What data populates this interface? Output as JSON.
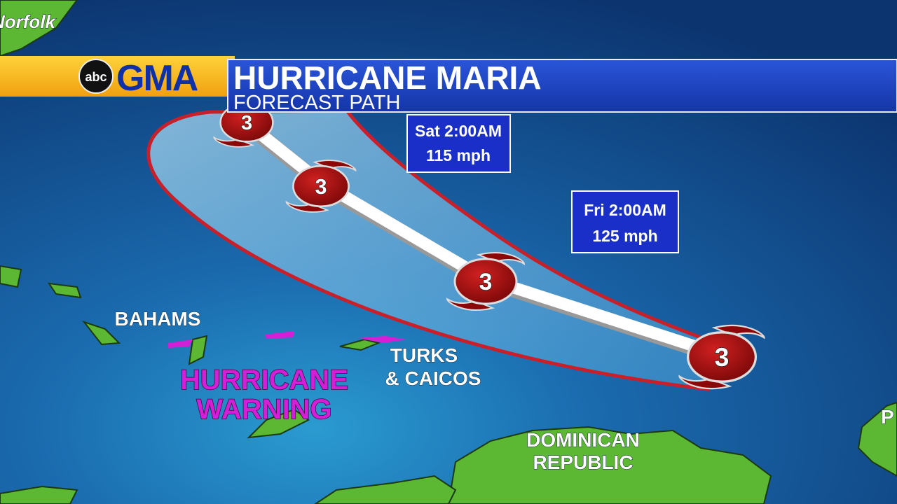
{
  "header": {
    "network": "abc",
    "show": "GMA",
    "title": "HURRICANE MARIA",
    "subtitle": "FORECAST PATH"
  },
  "forecasts": [
    {
      "time": "Sat 2:00AM",
      "wind": "115 mph"
    },
    {
      "time": "Fri 2:00AM",
      "wind": "125 mph"
    }
  ],
  "storms": [
    {
      "category": "3"
    },
    {
      "category": "3"
    },
    {
      "category": "3"
    },
    {
      "category": "3"
    }
  ],
  "places": {
    "norfolk": "Norfolk",
    "bahamas": "BAHAMS",
    "turks_caicos": [
      "TURKS",
      "& CAICOS"
    ],
    "dominican_republic": [
      "DOMINICAN",
      "REPUBLIC"
    ],
    "edge": "P"
  },
  "warning": [
    "HURRICANE",
    "WARNING"
  ]
}
